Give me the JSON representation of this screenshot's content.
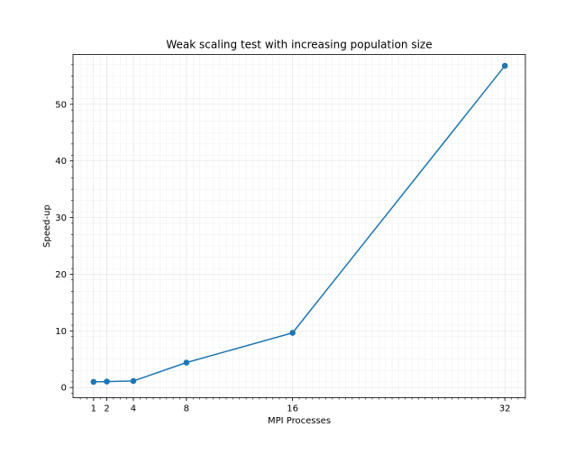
{
  "chart_data": {
    "type": "line",
    "title": "Weak scaling test with increasing population size",
    "xlabel": "MPI Processes",
    "ylabel": "Speed-up",
    "x": [
      1,
      2,
      4,
      8,
      16,
      32
    ],
    "series": [
      {
        "name": "",
        "values": [
          1.0,
          1.05,
          1.15,
          4.4,
          9.65,
          56.8
        ],
        "color": "#1f77b4",
        "marker": "circle"
      }
    ],
    "xticks": [
      1,
      2,
      4,
      8,
      16,
      32
    ],
    "xtick_labels": [
      "1",
      "2",
      "4",
      "8",
      "16",
      "32"
    ],
    "yticks": [
      0,
      10,
      20,
      30,
      40,
      50
    ],
    "ytick_labels": [
      "0",
      "10",
      "20",
      "30",
      "40",
      "50"
    ],
    "xlim": [
      -0.55,
      33.55
    ],
    "ylim": [
      -1.8,
      58.8
    ],
    "grid": true,
    "minor_ticks": true,
    "legend": "none"
  }
}
